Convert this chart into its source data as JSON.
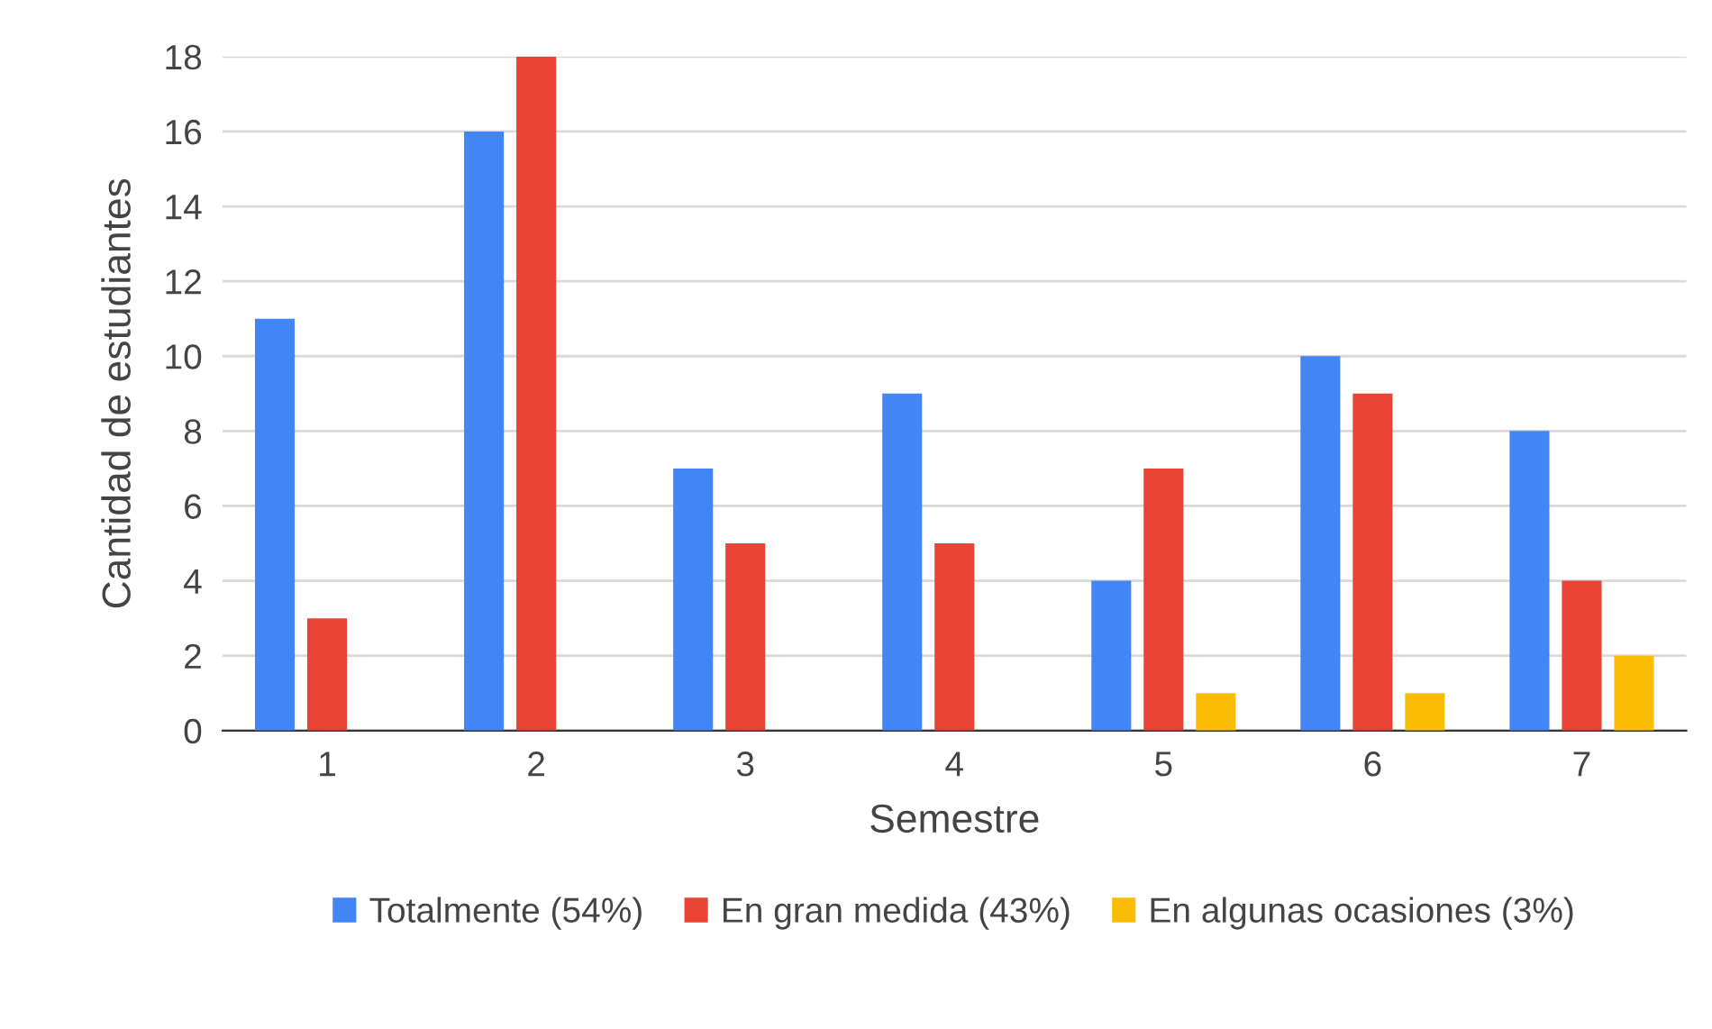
{
  "chart_data": {
    "type": "bar",
    "xlabel": "Semestre",
    "ylabel": "Cantidad de estudiantes",
    "categories": [
      "1",
      "2",
      "3",
      "4",
      "5",
      "6",
      "7"
    ],
    "series": [
      {
        "name": "Totalmente (54%)",
        "color": "#4285f4",
        "values": [
          11,
          16,
          7,
          9,
          4,
          10,
          8
        ]
      },
      {
        "name": "En gran medida (43%)",
        "color": "#ea4335",
        "values": [
          3,
          18,
          5,
          5,
          7,
          9,
          4
        ]
      },
      {
        "name": "En algunas ocasiones (3%)",
        "color": "#fbbc04",
        "values": [
          null,
          null,
          null,
          null,
          1,
          1,
          2
        ]
      }
    ],
    "ylim": [
      0,
      18
    ],
    "yticks": [
      0,
      2,
      4,
      6,
      8,
      10,
      12,
      14,
      16,
      18
    ],
    "grid": "y",
    "legend": "bottom"
  }
}
